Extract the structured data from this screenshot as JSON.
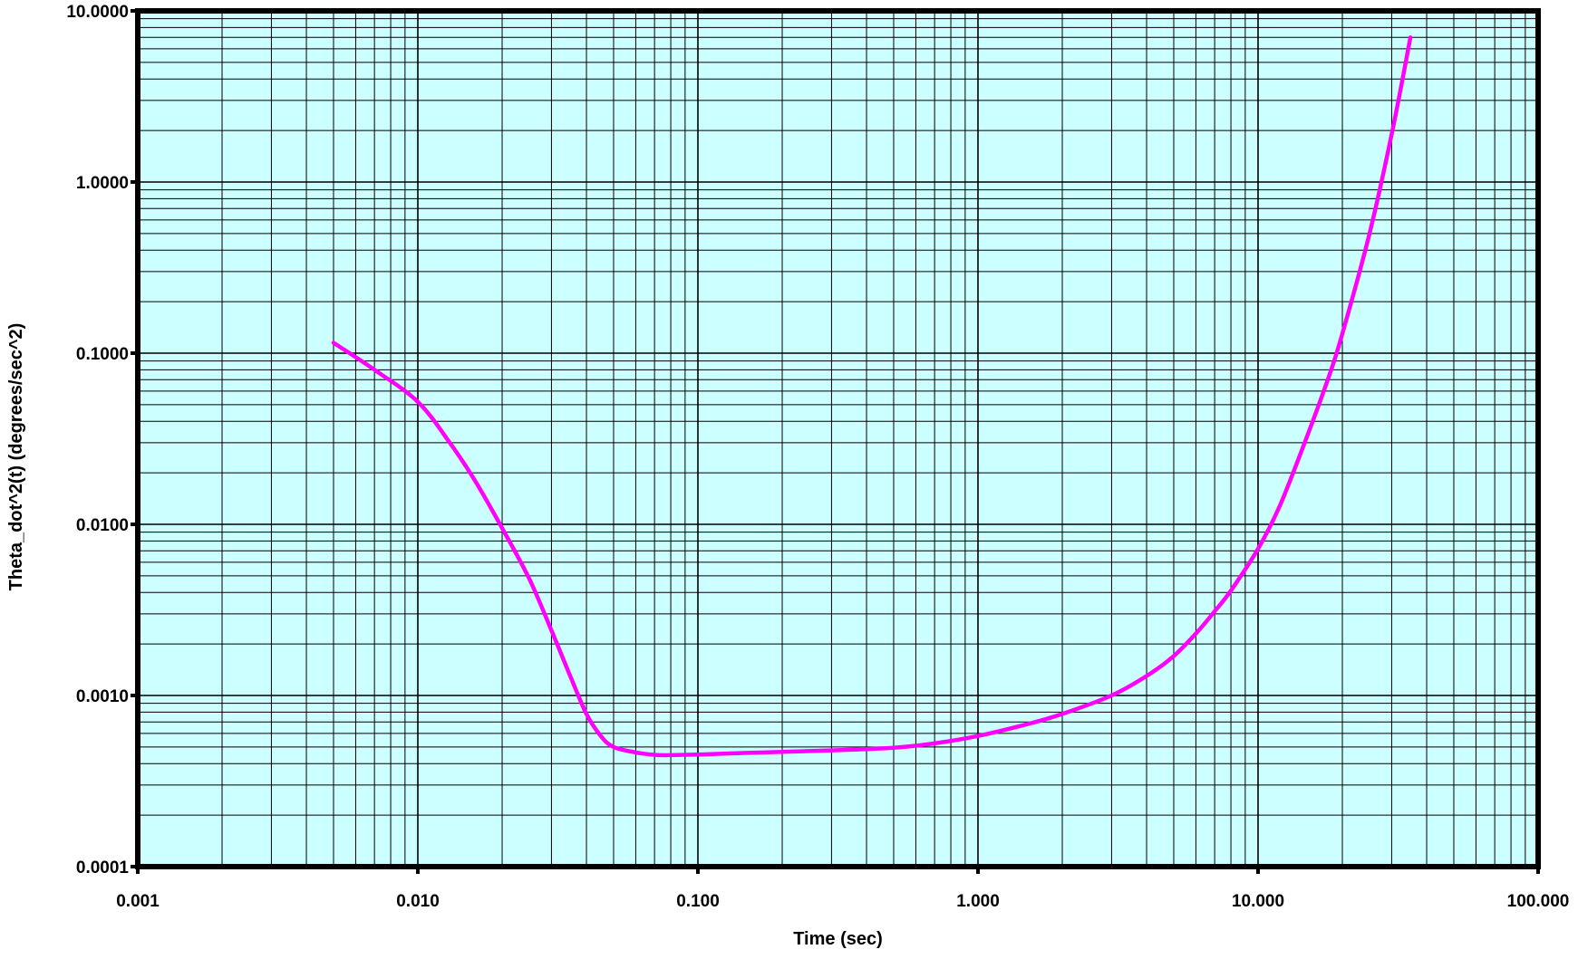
{
  "chart_data": {
    "type": "line",
    "title": "",
    "xlabel": "Time (sec)",
    "ylabel": "Theta_dot^2(t) (degrees/sec^2)",
    "x_scale": "log",
    "y_scale": "log",
    "xlim": [
      0.001,
      100
    ],
    "ylim": [
      0.0001,
      10
    ],
    "x_tick_labels": [
      "0.001",
      "0.010",
      "0.100",
      "1.000",
      "10.000",
      "100.000"
    ],
    "y_tick_labels": [
      "0.0001",
      "0.0010",
      "0.0100",
      "0.1000",
      "1.0000",
      "10.0000"
    ],
    "grid": true,
    "grid_type": "major and minor (log decades)",
    "legend": "none",
    "plot_background": "#ccffff",
    "series": [
      {
        "color": "#ff00ff",
        "x": [
          0.005,
          0.007,
          0.01,
          0.013,
          0.016,
          0.02,
          0.025,
          0.03,
          0.035,
          0.04,
          0.045,
          0.05,
          0.06,
          0.07,
          0.08,
          0.1,
          0.15,
          0.2,
          0.3,
          0.5,
          0.7,
          1.0,
          1.5,
          2.0,
          3.0,
          4.0,
          5.0,
          6.0,
          7.0,
          8.0,
          10.0,
          12.0,
          15.0,
          18.0,
          20.0,
          25.0,
          30.0,
          35.0
        ],
        "y": [
          0.115,
          0.08,
          0.052,
          0.03,
          0.018,
          0.0095,
          0.0048,
          0.0024,
          0.0013,
          0.00078,
          0.00058,
          0.0005,
          0.000465,
          0.00045,
          0.000448,
          0.000452,
          0.000462,
          0.000468,
          0.000478,
          0.000495,
          0.000525,
          0.00058,
          0.00068,
          0.00078,
          0.001,
          0.0013,
          0.0017,
          0.0023,
          0.0031,
          0.0041,
          0.0072,
          0.013,
          0.033,
          0.075,
          0.13,
          0.5,
          1.9,
          7.0
        ]
      }
    ]
  }
}
